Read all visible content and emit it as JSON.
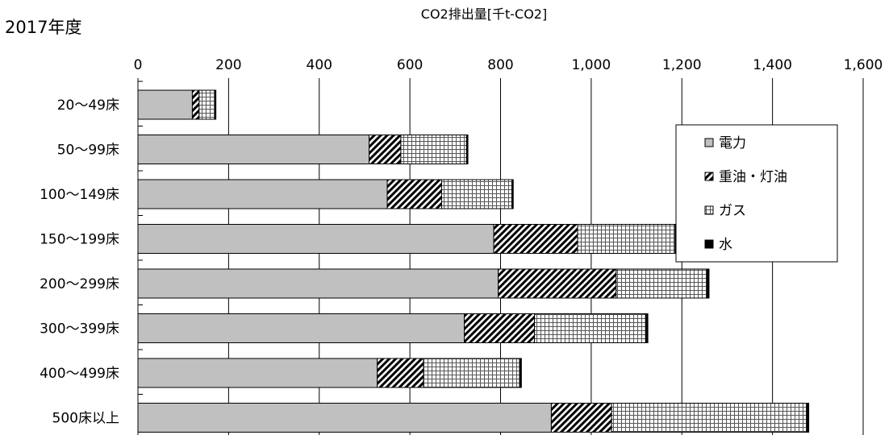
{
  "page": {
    "year_label": "2017年度"
  },
  "chart_data": {
    "type": "bar",
    "orientation": "horizontal",
    "stacked": true,
    "title": "CO2排出量[千t-CO2]",
    "xlim": [
      0,
      1600
    ],
    "x_ticks": [
      0,
      200,
      400,
      600,
      800,
      1000,
      1200,
      1400,
      1600
    ],
    "x_tick_labels": [
      "0",
      "200",
      "400",
      "600",
      "800",
      "1,000",
      "1,200",
      "1,400",
      "1,600"
    ],
    "grid": "vertical",
    "legend_position": "right",
    "categories": [
      "20～49床",
      "50～99床",
      "100～149床",
      "150～199床",
      "200～299床",
      "300～399床",
      "400～499床",
      "500床以上"
    ],
    "series": [
      {
        "name": "電力",
        "pattern": "gray",
        "color": "#c0c0c0",
        "values": [
          120,
          510,
          550,
          785,
          795,
          720,
          528,
          912
        ]
      },
      {
        "name": "重油・灯油",
        "pattern": "hatch",
        "color": "#000000",
        "values": [
          15,
          70,
          120,
          185,
          260,
          155,
          102,
          133
        ]
      },
      {
        "name": "ガス",
        "pattern": "grid",
        "color": "#000000",
        "values": [
          35,
          145,
          155,
          215,
          200,
          245,
          212,
          430
        ]
      },
      {
        "name": "水",
        "pattern": "solid",
        "color": "#000000",
        "values": [
          2,
          3,
          3,
          4,
          5,
          5,
          4,
          5
        ]
      }
    ]
  }
}
